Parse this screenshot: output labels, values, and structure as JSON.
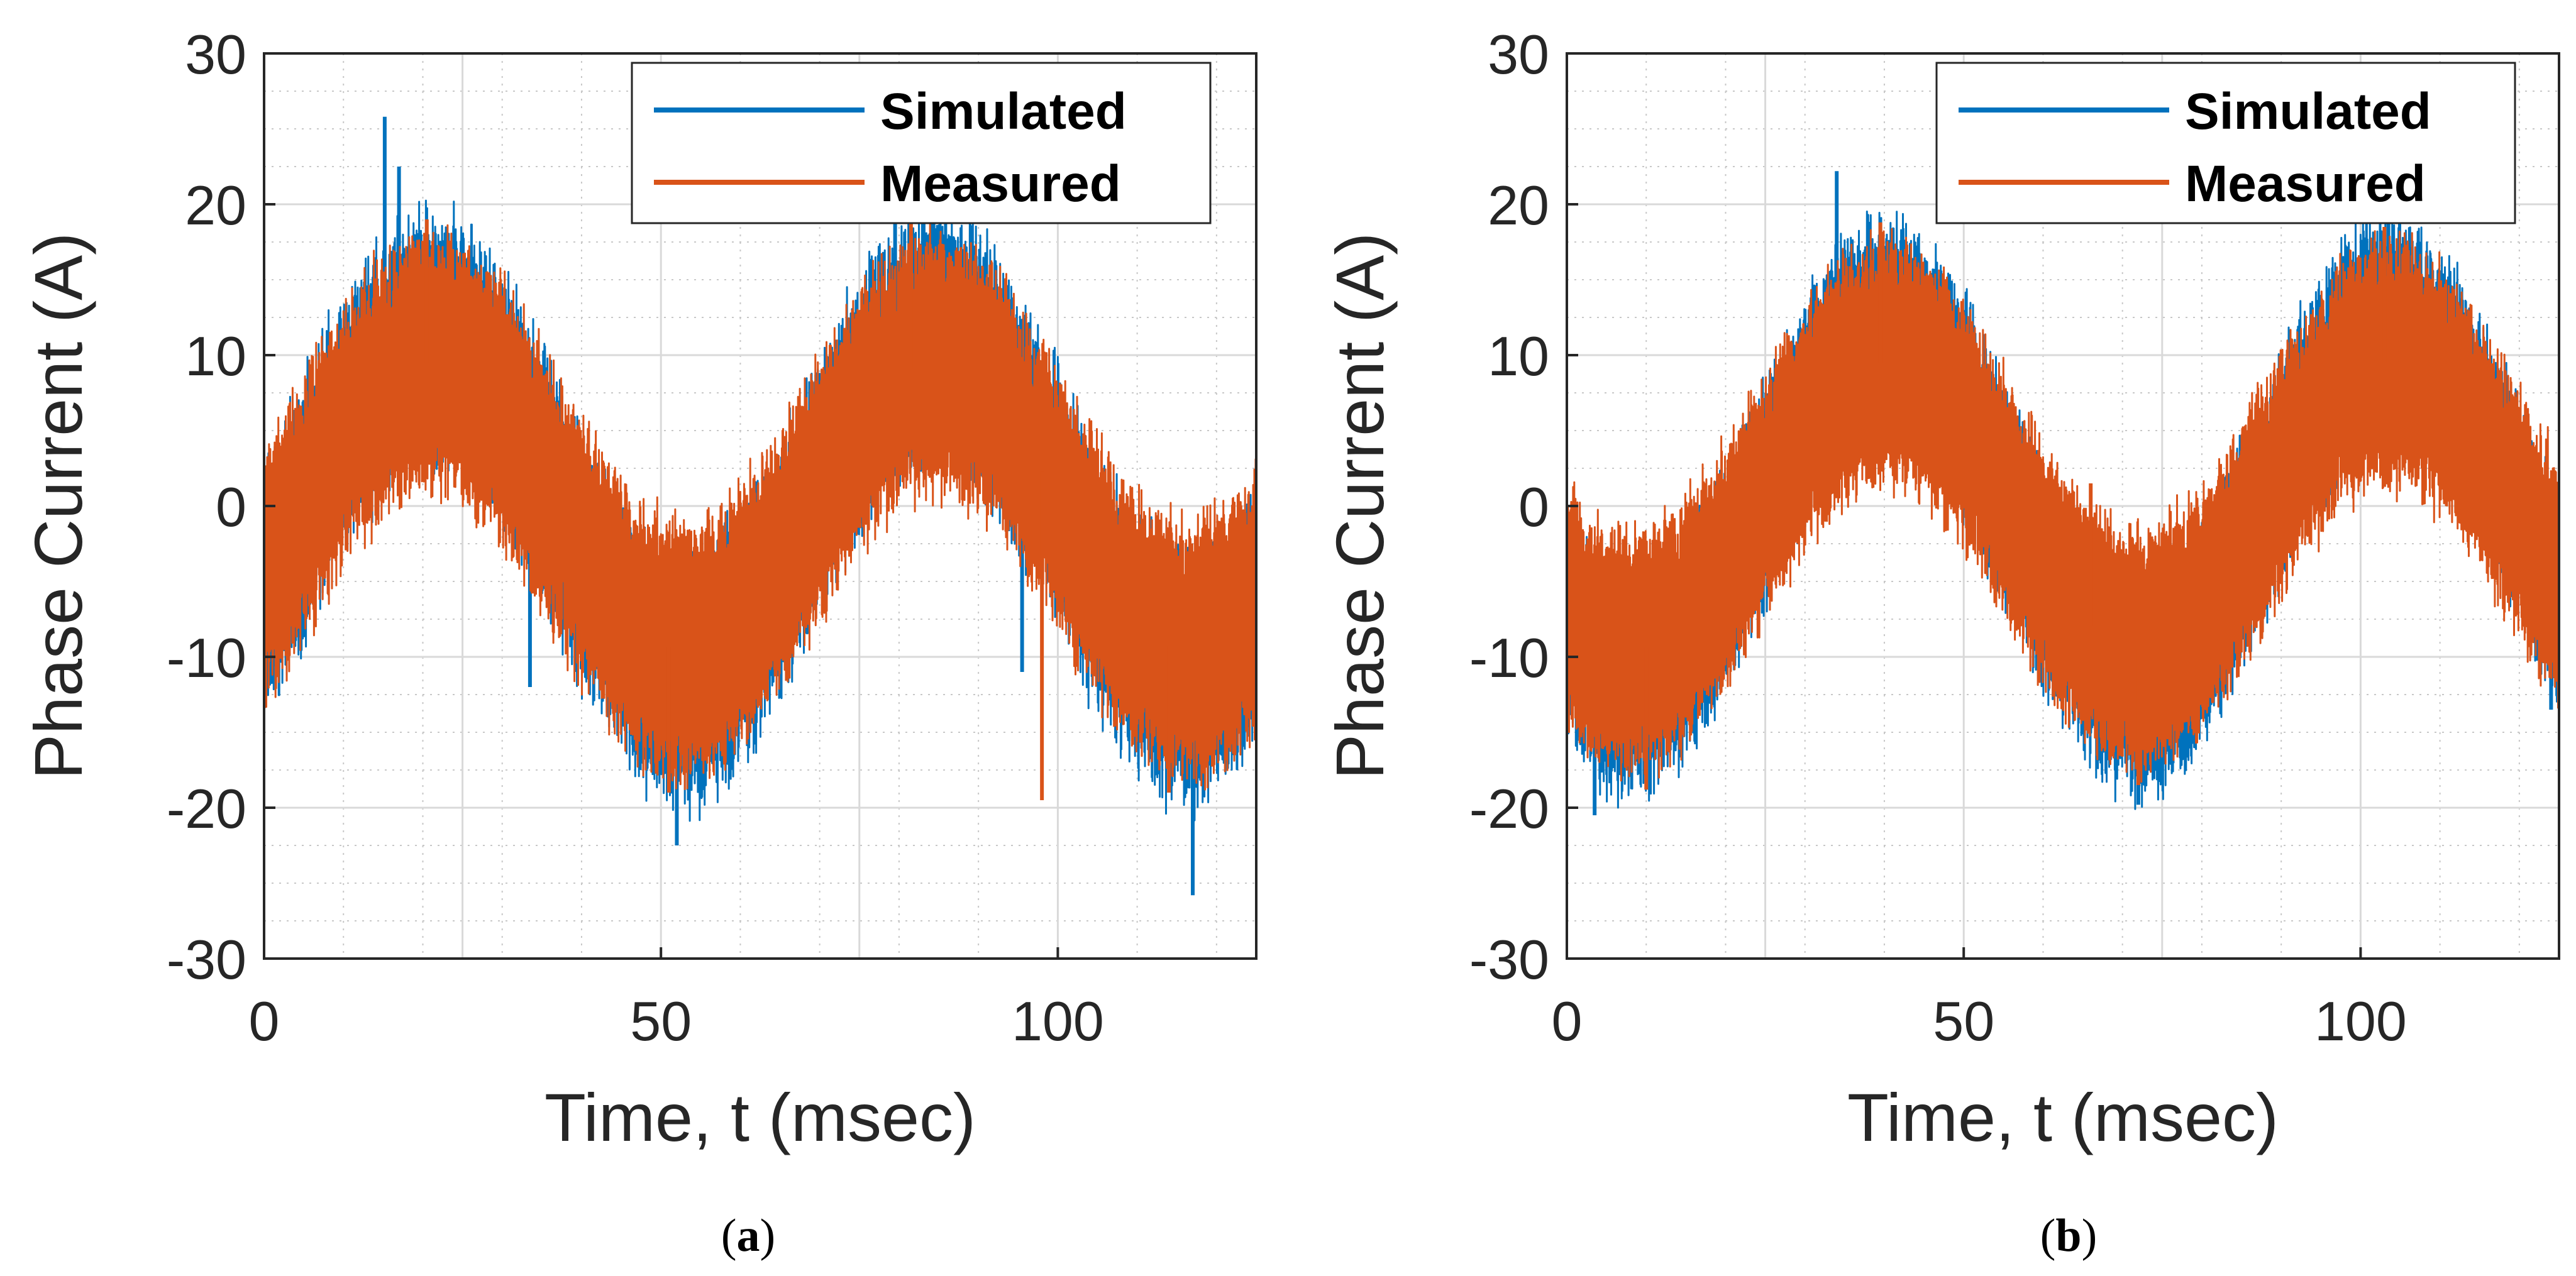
{
  "colors": {
    "simulated": "#0072BD",
    "measured": "#D95319",
    "grid_major": "#d9d9d9",
    "grid_minor": "#c8c8c8",
    "axis": "#262626"
  },
  "chart_data": [
    {
      "panel": "a",
      "caption": {
        "open": "(",
        "letter": "a",
        "close": ")"
      },
      "type": "line",
      "xlabel": "Time, t (msec)",
      "ylabel": "Phase Current (A)",
      "xlim": [
        0,
        125
      ],
      "ylim": [
        -30,
        30
      ],
      "xticks": [
        0,
        50,
        100
      ],
      "yticks": [
        30,
        20,
        10,
        0,
        -10,
        -20,
        -30
      ],
      "grid": "major+minor",
      "legend_position": "top-right",
      "series": [
        {
          "name": "Simulated",
          "signal": {
            "amplitude": 11.5,
            "period_ms": 63.5,
            "phase_ms": 5.2,
            "ripple": 7.5,
            "noise": 2.2
          },
          "spikes": [
            [
              15.2,
              25.8
            ],
            [
              17.0,
              22.5
            ],
            [
              52.0,
              -22.5
            ],
            [
              79.5,
              21.5
            ],
            [
              117.0,
              -25.8
            ],
            [
              33.5,
              -12.0
            ],
            [
              95.5,
              -11.0
            ]
          ]
        },
        {
          "name": "Measured",
          "signal": {
            "amplitude": 9.5,
            "period_ms": 63.5,
            "phase_ms": 5.2,
            "ripple": 8.5,
            "noise": 1.3
          },
          "spikes": [
            [
              98.0,
              -19.5
            ],
            [
              20.5,
              19.0
            ],
            [
              51.0,
              -19.0
            ],
            [
              81.5,
              19.0
            ],
            [
              114.0,
              -19.0
            ]
          ]
        }
      ]
    },
    {
      "panel": "b",
      "caption": {
        "open": "(",
        "letter": "b",
        "close": ")"
      },
      "type": "line",
      "xlabel": "Time, t (msec)",
      "ylabel": "Phase Current (A)",
      "xlim": [
        0,
        125
      ],
      "ylim": [
        -30,
        30
      ],
      "xticks": [
        0,
        50,
        100
      ],
      "yticks": [
        30,
        20,
        10,
        0,
        -10,
        -20,
        -30
      ],
      "grid": "major+minor",
      "legend_position": "top-right",
      "series": [
        {
          "name": "Simulated",
          "signal": {
            "amplitude": 12.0,
            "period_ms": 63.5,
            "phase_ms": 24.2,
            "ripple": 6.5,
            "noise": 2.0
          },
          "spikes": [
            [
              34.0,
              22.2
            ],
            [
              3.5,
              -20.5
            ],
            [
              72.0,
              -19.8
            ],
            [
              103.5,
              19.5
            ],
            [
              124.0,
              -13.5
            ]
          ]
        },
        {
          "name": "Measured",
          "signal": {
            "amplitude": 9.5,
            "period_ms": 63.5,
            "phase_ms": 24.2,
            "ripple": 8.0,
            "noise": 1.2
          },
          "spikes": [
            [
              66.0,
              1.5
            ],
            [
              39.5,
              18.8
            ],
            [
              72.0,
              -18.5
            ],
            [
              103.0,
              18.5
            ],
            [
              10.0,
              -18.8
            ]
          ]
        }
      ]
    }
  ]
}
